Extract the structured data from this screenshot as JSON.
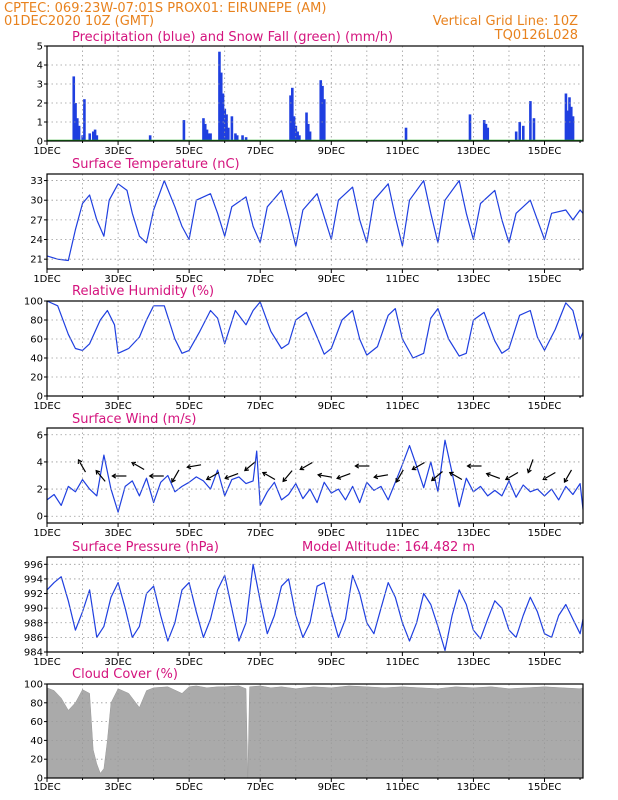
{
  "header": {
    "line1_left": "CPTEC:   069:23W-07:01S   PROX01: EIRUNEPE (AM)",
    "line2_left": "01DEC2020 10Z (GMT)",
    "line2_right": "Vertical Grid Line: 10Z",
    "line3_right": "TQ0126L028"
  },
  "colors": {
    "header": "#e8821e",
    "panel_title": "#d4147e",
    "series_line": "#1f3fe0",
    "precip_bar": "#1f3fe0",
    "snow_line": "#22aa22",
    "cloud_fill": "#aaaaaa",
    "wind_arrow": "#000000"
  },
  "x_axis": {
    "tick_labels": [
      "1DEC",
      "3DEC",
      "5DEC",
      "7DEC",
      "9DEC",
      "11DEC",
      "13DEC",
      "15DEC"
    ],
    "start_day": 1,
    "end_day": 16.083
  },
  "chart_data": [
    {
      "type": "bar",
      "title": "Precipitation (blue) and Snow Fall (green) (mm/h)",
      "ylim": [
        0,
        5
      ],
      "yticks": [
        0,
        1,
        2,
        3,
        4,
        5
      ],
      "grid": true,
      "series": [
        {
          "name": "Precipitation",
          "color": "#1f3fe0",
          "x": [
            1.75,
            1.8,
            1.85,
            1.9,
            2.0,
            2.05,
            2.2,
            2.3,
            2.35,
            2.4,
            3.9,
            4.85,
            5.4,
            5.45,
            5.5,
            5.55,
            5.6,
            5.85,
            5.9,
            5.95,
            6.0,
            6.05,
            6.1,
            6.2,
            6.3,
            6.35,
            6.5,
            6.6,
            7.85,
            7.9,
            7.95,
            8.0,
            8.05,
            8.1,
            8.3,
            8.35,
            8.4,
            8.7,
            8.75,
            8.8,
            11.1,
            12.9,
            13.3,
            13.35,
            13.4,
            14.2,
            14.3,
            14.4,
            14.6,
            14.7,
            15.6,
            15.65,
            15.7,
            15.75,
            15.8
          ],
          "values": [
            3.4,
            2.0,
            1.2,
            0.8,
            0.3,
            2.2,
            0.4,
            0.5,
            0.6,
            0.3,
            0.3,
            1.1,
            1.2,
            0.9,
            0.6,
            0.4,
            0.4,
            4.7,
            3.6,
            2.5,
            1.7,
            1.4,
            0.7,
            1.3,
            0.4,
            0.3,
            0.3,
            0.2,
            2.4,
            2.8,
            1.3,
            0.8,
            0.5,
            0.3,
            1.5,
            0.9,
            0.5,
            3.2,
            2.9,
            2.2,
            0.7,
            1.4,
            1.1,
            0.9,
            0.7,
            0.5,
            1.0,
            0.8,
            2.1,
            1.2,
            2.5,
            1.6,
            2.3,
            1.8,
            1.3
          ]
        },
        {
          "name": "Snow Fall",
          "color": "#22aa22",
          "x": [
            1.0,
            16.083
          ],
          "values": [
            0,
            0
          ]
        }
      ]
    },
    {
      "type": "line",
      "title": "Surface Temperature (nC)",
      "ylim": [
        19.5,
        34
      ],
      "yticks": [
        21,
        24,
        27,
        30,
        33
      ],
      "grid": true,
      "series": [
        {
          "name": "Temperature",
          "color": "#1f3fe0",
          "x": [
            1.0,
            1.3,
            1.6,
            1.8,
            2.0,
            2.2,
            2.4,
            2.6,
            2.75,
            3.0,
            3.25,
            3.4,
            3.6,
            3.8,
            4.0,
            4.3,
            4.6,
            4.8,
            5.0,
            5.2,
            5.6,
            5.8,
            6.0,
            6.2,
            6.6,
            6.8,
            7.0,
            7.2,
            7.6,
            7.8,
            8.0,
            8.2,
            8.6,
            8.8,
            9.0,
            9.2,
            9.6,
            9.8,
            10.0,
            10.2,
            10.6,
            10.8,
            11.0,
            11.2,
            11.6,
            11.8,
            12.0,
            12.2,
            12.6,
            12.8,
            13.0,
            13.2,
            13.6,
            13.8,
            14.0,
            14.2,
            14.6,
            14.8,
            15.0,
            15.2,
            15.6,
            15.8,
            16.0,
            16.083
          ],
          "values": [
            21.5,
            21.0,
            20.8,
            25.5,
            29.5,
            30.8,
            27.0,
            24.5,
            30.0,
            32.5,
            31.5,
            28.0,
            24.5,
            23.5,
            28.5,
            33.0,
            29.0,
            26.0,
            24.0,
            30.0,
            31.0,
            28.0,
            24.5,
            29.0,
            30.5,
            26.0,
            23.5,
            29.0,
            31.5,
            27.5,
            23.0,
            28.5,
            31.0,
            27.5,
            24.0,
            30.0,
            32.0,
            27.0,
            23.5,
            30.0,
            32.5,
            27.5,
            23.0,
            30.0,
            33.0,
            28.0,
            23.5,
            30.0,
            33.0,
            28.0,
            24.0,
            29.5,
            31.5,
            27.0,
            23.5,
            28.0,
            30.0,
            27.0,
            24.0,
            28.0,
            28.5,
            27.0,
            28.5,
            28.0
          ]
        }
      ]
    },
    {
      "type": "line",
      "title": "Relative Humidity (%)",
      "ylim": [
        0,
        100
      ],
      "yticks": [
        0,
        20,
        40,
        60,
        80,
        100
      ],
      "grid": true,
      "series": [
        {
          "name": "Relative Humidity",
          "color": "#1f3fe0",
          "x": [
            1.0,
            1.3,
            1.6,
            1.8,
            2.0,
            2.2,
            2.5,
            2.7,
            2.9,
            3.0,
            3.3,
            3.6,
            3.8,
            4.0,
            4.3,
            4.6,
            4.8,
            5.0,
            5.3,
            5.6,
            5.8,
            6.0,
            6.3,
            6.6,
            6.8,
            7.0,
            7.3,
            7.6,
            7.8,
            8.0,
            8.3,
            8.6,
            8.8,
            9.0,
            9.3,
            9.6,
            9.8,
            10.0,
            10.3,
            10.6,
            10.8,
            11.0,
            11.3,
            11.6,
            11.8,
            12.0,
            12.3,
            12.6,
            12.8,
            13.0,
            13.3,
            13.6,
            13.8,
            14.0,
            14.3,
            14.6,
            14.8,
            15.0,
            15.3,
            15.6,
            15.8,
            16.0,
            16.083
          ],
          "values": [
            100,
            95,
            65,
            50,
            48,
            55,
            80,
            90,
            75,
            45,
            50,
            62,
            80,
            95,
            95,
            60,
            45,
            48,
            68,
            90,
            82,
            55,
            90,
            75,
            90,
            99,
            68,
            50,
            55,
            80,
            88,
            62,
            44,
            50,
            80,
            90,
            60,
            43,
            52,
            85,
            92,
            60,
            40,
            45,
            82,
            92,
            60,
            42,
            45,
            80,
            88,
            58,
            45,
            50,
            85,
            90,
            62,
            48,
            70,
            98,
            90,
            60,
            67
          ]
        }
      ]
    },
    {
      "type": "line",
      "title": "Surface Wind (m/s)",
      "ylim": [
        -0.5,
        6.5
      ],
      "yticks": [
        0,
        2,
        4,
        6
      ],
      "grid": true,
      "series": [
        {
          "name": "Wind Speed",
          "color": "#1f3fe0",
          "x": [
            1.0,
            1.2,
            1.4,
            1.6,
            1.8,
            2.0,
            2.2,
            2.4,
            2.6,
            2.8,
            3.0,
            3.2,
            3.4,
            3.6,
            3.8,
            4.0,
            4.2,
            4.4,
            4.6,
            4.8,
            5.0,
            5.2,
            5.4,
            5.6,
            5.8,
            6.0,
            6.2,
            6.4,
            6.6,
            6.8,
            6.9,
            7.0,
            7.2,
            7.4,
            7.6,
            7.8,
            8.0,
            8.2,
            8.4,
            8.6,
            8.8,
            9.0,
            9.2,
            9.4,
            9.6,
            9.8,
            10.0,
            10.2,
            10.4,
            10.6,
            10.8,
            11.0,
            11.2,
            11.4,
            11.6,
            11.8,
            12.0,
            12.2,
            12.4,
            12.6,
            12.8,
            13.0,
            13.2,
            13.4,
            13.6,
            13.8,
            14.0,
            14.2,
            14.4,
            14.6,
            14.8,
            15.0,
            15.2,
            15.4,
            15.6,
            15.8,
            16.0,
            16.083
          ],
          "values": [
            1.2,
            1.6,
            0.8,
            2.2,
            1.8,
            2.7,
            2.0,
            1.5,
            4.5,
            2.0,
            0.3,
            2.2,
            2.6,
            1.5,
            2.8,
            1.0,
            2.5,
            3.0,
            1.8,
            2.2,
            2.5,
            2.9,
            2.6,
            2.0,
            3.4,
            1.5,
            2.7,
            2.9,
            2.4,
            2.6,
            4.8,
            0.8,
            1.8,
            2.5,
            1.2,
            1.6,
            2.4,
            1.3,
            2.0,
            1.0,
            2.5,
            1.7,
            2.0,
            1.2,
            2.2,
            1.0,
            2.5,
            1.9,
            2.2,
            1.2,
            2.5,
            3.8,
            5.2,
            3.7,
            2.1,
            4.0,
            1.8,
            5.6,
            3.2,
            0.7,
            2.8,
            1.8,
            2.2,
            1.5,
            1.9,
            1.5,
            2.6,
            1.4,
            2.3,
            1.8,
            2.0,
            1.5,
            2.0,
            1.2,
            2.2,
            1.6,
            2.4,
            0.5
          ]
        }
      ],
      "wind_direction_arrows_deg": [
        330,
        320,
        270,
        300,
        270,
        210,
        260,
        240,
        250,
        230,
        300,
        220,
        240,
        280,
        250,
        270,
        260,
        210,
        240,
        230,
        300,
        270,
        290,
        240,
        200,
        240,
        210
      ]
    },
    {
      "type": "line",
      "title": "Surface Pressure (hPa)",
      "annotation": "Model Altitude: 164.482  m",
      "ylim": [
        984,
        997
      ],
      "yticks": [
        984,
        986,
        988,
        990,
        992,
        994,
        996
      ],
      "grid": true,
      "series": [
        {
          "name": "Surface Pressure",
          "color": "#1f3fe0",
          "x": [
            1.0,
            1.2,
            1.4,
            1.6,
            1.8,
            2.0,
            2.2,
            2.4,
            2.6,
            2.8,
            3.0,
            3.2,
            3.4,
            3.6,
            3.8,
            4.0,
            4.2,
            4.4,
            4.6,
            4.8,
            5.0,
            5.2,
            5.4,
            5.6,
            5.8,
            6.0,
            6.2,
            6.4,
            6.6,
            6.8,
            7.0,
            7.2,
            7.4,
            7.6,
            7.8,
            8.0,
            8.2,
            8.4,
            8.6,
            8.8,
            9.0,
            9.2,
            9.4,
            9.6,
            9.8,
            10.0,
            10.2,
            10.4,
            10.6,
            10.8,
            11.0,
            11.2,
            11.4,
            11.6,
            11.8,
            12.0,
            12.2,
            12.4,
            12.6,
            12.8,
            13.0,
            13.2,
            13.4,
            13.6,
            13.8,
            14.0,
            14.2,
            14.4,
            14.6,
            14.8,
            15.0,
            15.2,
            15.4,
            15.6,
            15.8,
            16.0,
            16.083
          ],
          "values": [
            992.5,
            993.5,
            994.3,
            991.0,
            987.0,
            989.5,
            992.5,
            986.0,
            987.5,
            991.5,
            993.5,
            990.0,
            986.0,
            987.5,
            992.0,
            993.0,
            989.0,
            985.5,
            988.0,
            992.5,
            993.5,
            989.5,
            986.0,
            988.5,
            992.5,
            994.5,
            990.0,
            985.5,
            988.0,
            996.0,
            991.0,
            986.5,
            989.0,
            993.0,
            994.0,
            989.0,
            986.0,
            988.0,
            993.0,
            993.5,
            989.5,
            986.0,
            988.5,
            994.5,
            992.0,
            988.0,
            986.5,
            990.0,
            993.5,
            991.5,
            988.0,
            985.5,
            988.0,
            992.0,
            990.5,
            987.5,
            984.2,
            989.0,
            992.5,
            990.5,
            987.0,
            985.8,
            988.5,
            991.0,
            990.0,
            987.0,
            986.0,
            989.0,
            991.5,
            989.5,
            986.5,
            986.0,
            989.0,
            990.5,
            988.5,
            986.5,
            988.5
          ]
        }
      ]
    },
    {
      "type": "area",
      "title": "Cloud Cover (%)",
      "ylim": [
        0,
        100
      ],
      "yticks": [
        0,
        20,
        40,
        60,
        80,
        100
      ],
      "grid": true,
      "series": [
        {
          "name": "Cloud Cover",
          "color": "#aaaaaa",
          "x": [
            1.0,
            1.2,
            1.4,
            1.6,
            1.8,
            2.0,
            2.2,
            2.3,
            2.4,
            2.5,
            2.6,
            2.7,
            2.8,
            3.0,
            3.3,
            3.6,
            3.8,
            4.0,
            4.4,
            4.8,
            5.0,
            5.2,
            5.5,
            5.8,
            6.0,
            6.4,
            6.6,
            6.65,
            6.7,
            7.0,
            7.3,
            7.6,
            8.0,
            8.5,
            9.0,
            9.5,
            10.0,
            10.5,
            11.0,
            11.5,
            12.0,
            12.5,
            13.0,
            13.5,
            14.0,
            14.5,
            15.0,
            15.5,
            16.0,
            16.083
          ],
          "values": [
            96,
            93,
            85,
            72,
            80,
            94,
            90,
            30,
            15,
            5,
            10,
            40,
            80,
            95,
            90,
            75,
            93,
            96,
            97,
            90,
            97,
            98,
            96,
            97,
            97,
            98,
            95,
            0,
            97,
            98,
            96,
            97,
            95,
            97,
            96,
            98,
            97,
            96,
            97,
            96,
            95,
            97,
            96,
            97,
            95,
            96,
            97,
            96,
            95,
            96
          ]
        }
      ]
    }
  ]
}
